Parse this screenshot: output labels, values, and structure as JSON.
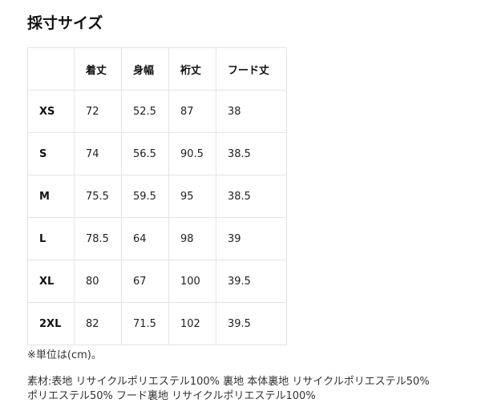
{
  "title": "採寸サイズ",
  "table": {
    "headers": [
      "",
      "着丈",
      "身幅",
      "裄丈",
      "フード丈"
    ],
    "rows": [
      [
        "XS",
        "72",
        "52.5",
        "87",
        "38"
      ],
      [
        "S",
        "74",
        "56.5",
        "90.5",
        "38.5"
      ],
      [
        "M",
        "75.5",
        "59.5",
        "95",
        "38.5"
      ],
      [
        "L",
        "78.5",
        "64",
        "98",
        "39"
      ],
      [
        "XL",
        "80",
        "67",
        "100",
        "39.5"
      ],
      [
        "2XL",
        "82",
        "71.5",
        "102",
        "39.5"
      ]
    ]
  },
  "unit_note": "※単位は(cm)。",
  "material_line1": "素材:表地 リサイクルポリエステル100% 裏地 本体裏地 リサイクルポリエステル50%",
  "material_line2": "ポリエステル50% フード裏地 リサイクルポリエステル100%"
}
